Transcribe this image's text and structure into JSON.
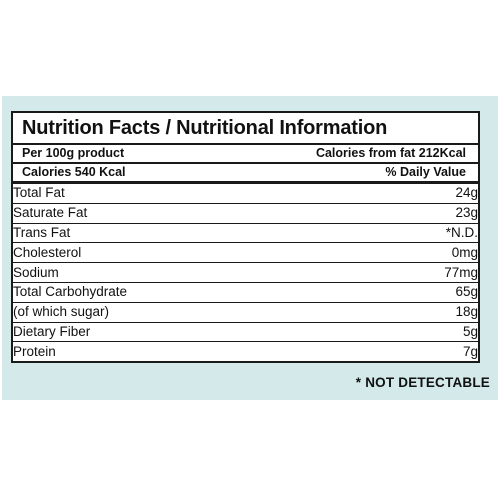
{
  "label": {
    "title": "Nutrition Facts / Nutritional Information",
    "serving": "Per 100g product",
    "calories_from_fat": "Calories from fat  212Kcal",
    "calories": "Calories 540 Kcal",
    "daily_value_header": "% Daily Value",
    "nutrients": [
      {
        "name": "Total Fat",
        "value": "24g"
      },
      {
        "name": "Saturate Fat",
        "value": "23g"
      },
      {
        "name": "Trans Fat",
        "value": "*N.D."
      },
      {
        "name": "Cholesterol",
        "value": "0mg"
      },
      {
        "name": "Sodium",
        "value": "77mg"
      },
      {
        "name": "Total Carbohydrate",
        "value": "65g"
      },
      {
        "name": "(of which sugar)",
        "value": "18g"
      },
      {
        "name": "Dietary Fiber",
        "value": "5g"
      },
      {
        "name": "Protein",
        "value": "7g"
      }
    ],
    "footnote": "* NOT DETECTABLE"
  },
  "colors": {
    "panel_background": "#d3e9ea",
    "border": "#1a1a1a"
  }
}
